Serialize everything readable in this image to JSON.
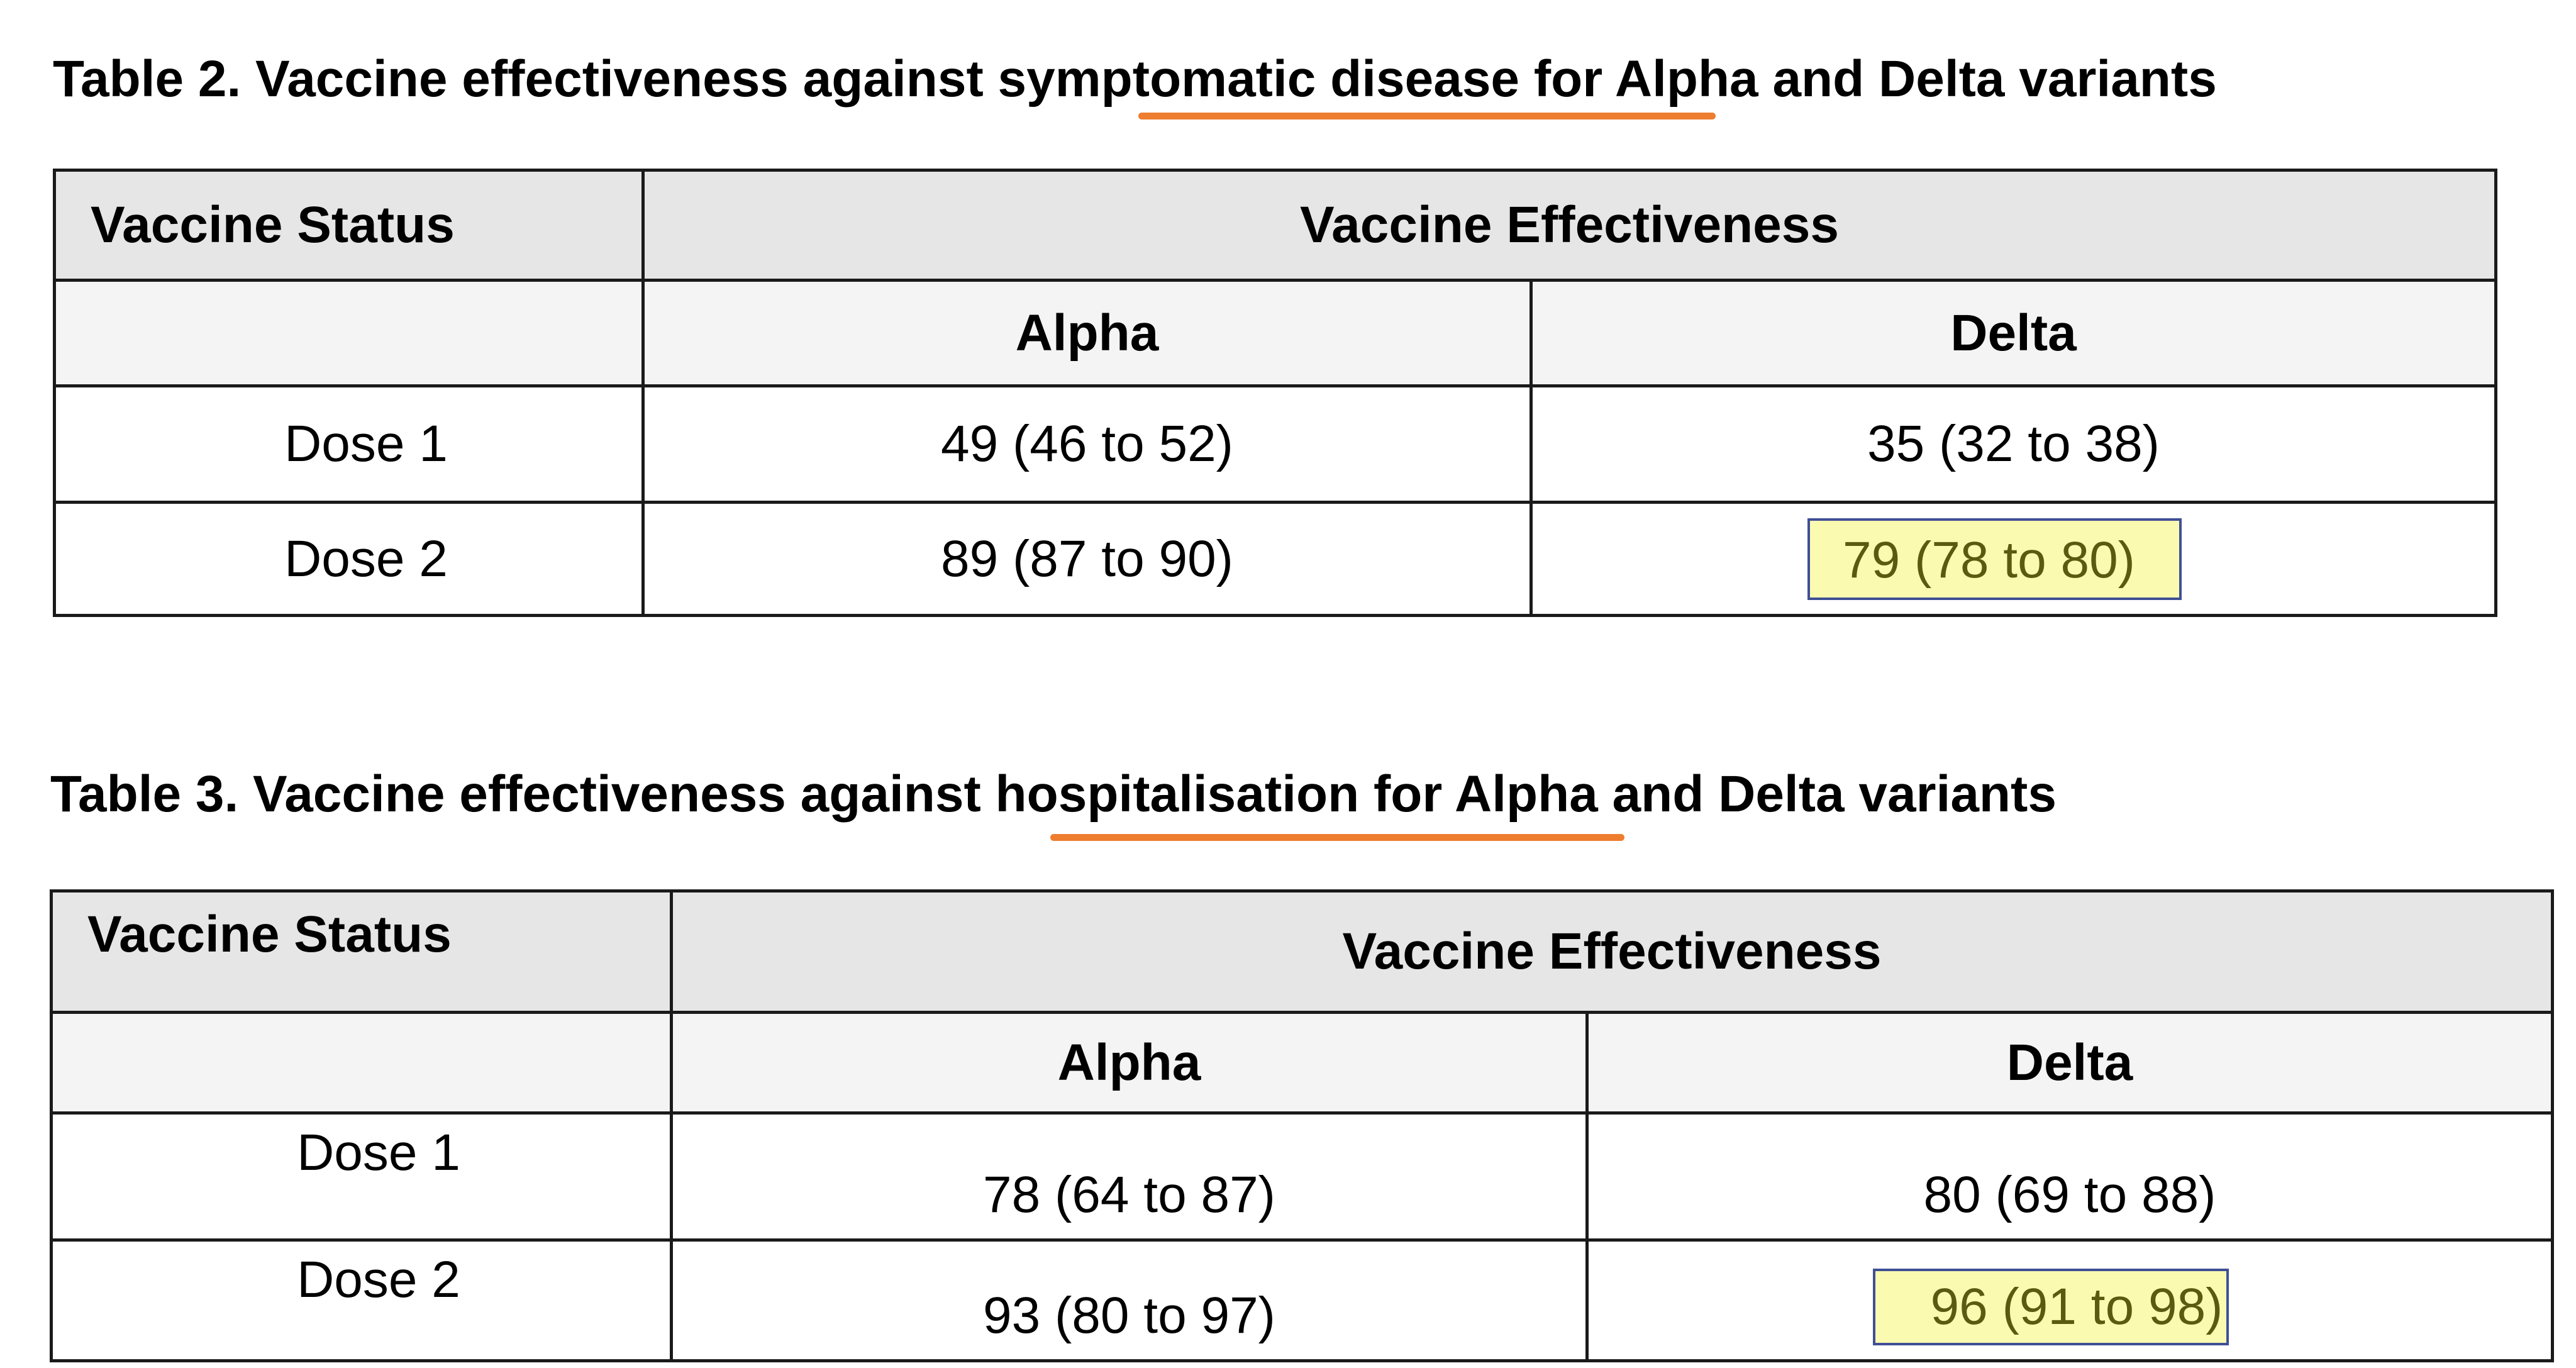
{
  "colors": {
    "underline": "#ee7d2f",
    "highlight_fill": "#fafab0",
    "highlight_text": "#5a5a12",
    "header_fill": "#e6e6e6",
    "subheader_fill": "#f4f4f4"
  },
  "tables": [
    {
      "caption_before": "Table 2. Vaccine effectiveness against ",
      "caption_emphasis": "symptomatic disease",
      "caption_after": " for Alpha and Delta variants",
      "status_header": "Vaccine Status",
      "effectiveness_header": "Vaccine Effectiveness",
      "columns": [
        "Alpha",
        "Delta"
      ],
      "rows": [
        {
          "label": "Dose 1",
          "alpha": "49 (46 to 52)",
          "delta": "35 (32 to 38)"
        },
        {
          "label": "Dose 2",
          "alpha": "89 (87 to 90)",
          "delta": "79 (78 to 80)"
        }
      ]
    },
    {
      "caption_before": "Table 3. Vaccine effectiveness against ",
      "caption_emphasis": "hospitalisation",
      "caption_after": " for Alpha and Delta variants",
      "status_header": "Vaccine Status",
      "effectiveness_header": "Vaccine Effectiveness",
      "columns": [
        "Alpha",
        "Delta"
      ],
      "rows": [
        {
          "label": "Dose 1",
          "alpha": "78 (64 to 87)",
          "delta": "80 (69 to 88)"
        },
        {
          "label": "Dose 2",
          "alpha": "93 (80 to 97)",
          "delta": "96 (91 to 98)"
        }
      ]
    }
  ]
}
